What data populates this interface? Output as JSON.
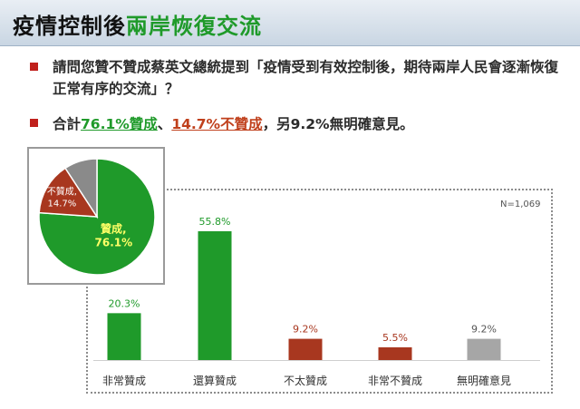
{
  "header": {
    "title_part1": "疫情控制後",
    "title_part2": "兩岸恢復交流"
  },
  "question": {
    "text": "請問您贊不贊成蔡英文總統提到「疫情受到有效控制後，期待兩岸人民會逐漸恢復正常有序的交流」？"
  },
  "summary": {
    "prefix": "合計",
    "agree": "76.1%贊成",
    "sep": "、",
    "disagree": "14.7%不贊成",
    "suffix": "，另9.2%無明確意見。"
  },
  "colors": {
    "green": "#1f9a2a",
    "red": "#a8371f",
    "gray": "#a6a6a6",
    "bullet": "#c0201c"
  },
  "chart_data": [
    {
      "type": "bar",
      "note": "N=1,069",
      "categories": [
        "非常贊成",
        "還算贊成",
        "不太贊成",
        "非常不贊成",
        "無明確意見"
      ],
      "values": [
        20.3,
        55.8,
        9.2,
        5.5,
        9.2
      ],
      "value_labels": [
        "20.3%",
        "55.8%",
        "9.2%",
        "5.5%",
        "9.2%"
      ],
      "bar_colors": [
        "#1f9a2a",
        "#1f9a2a",
        "#a8371f",
        "#a8371f",
        "#a6a6a6"
      ],
      "label_colors": [
        "#1f9a2a",
        "#1f9a2a",
        "#a8371f",
        "#a8371f",
        "#555555"
      ],
      "title": "",
      "xlabel": "",
      "ylabel": "",
      "ylim": [
        0,
        60
      ]
    },
    {
      "type": "pie",
      "slices": [
        {
          "label": "贊成,",
          "value_label": "76.1%",
          "value": 76.1,
          "color": "#1f9a2a",
          "text_color": "#ffff66"
        },
        {
          "label": "不贊成,",
          "value_label": "14.7%",
          "value": 14.7,
          "color": "#a8371f",
          "text_color": "#ffffff"
        },
        {
          "label": "",
          "value_label": "",
          "value": 9.2,
          "color": "#8a8a8a",
          "text_color": "#ffffff"
        }
      ]
    }
  ]
}
